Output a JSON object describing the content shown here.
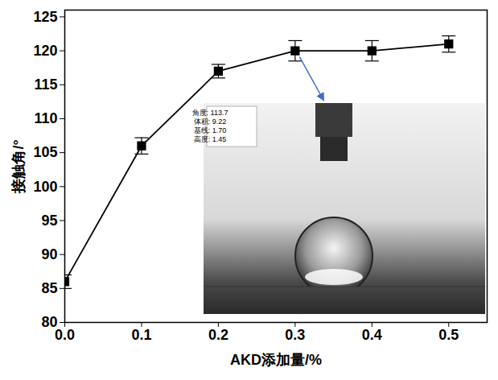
{
  "chart_data": {
    "type": "line",
    "x": [
      0,
      0.1,
      0.2,
      0.3,
      0.4,
      0.5
    ],
    "values": [
      86,
      106,
      117,
      120,
      120,
      121
    ],
    "error": [
      1,
      1.2,
      1,
      1.5,
      1.5,
      1.2
    ],
    "color": "#000000",
    "marker": "square",
    "x_label": "AKD添加量/%",
    "y_label": "接触角/°",
    "xlim": [
      0,
      0.55
    ],
    "ylim": [
      80,
      126
    ],
    "xticks": [
      {
        "value": 0,
        "label": "0.0"
      },
      {
        "value": 0.1,
        "label": "0.1"
      },
      {
        "value": 0.2,
        "label": "0.2"
      },
      {
        "value": 0.3,
        "label": "0.3"
      },
      {
        "value": 0.4,
        "label": "0.4"
      },
      {
        "value": 0.5,
        "label": "0.5"
      }
    ],
    "yticks": [
      80,
      85,
      90,
      95,
      100,
      105,
      110,
      115,
      120,
      125
    ],
    "annotations": [
      "角度: 113.7",
      "体积: 9.22",
      "基线: 1.70",
      "高度: 1.45"
    ]
  }
}
